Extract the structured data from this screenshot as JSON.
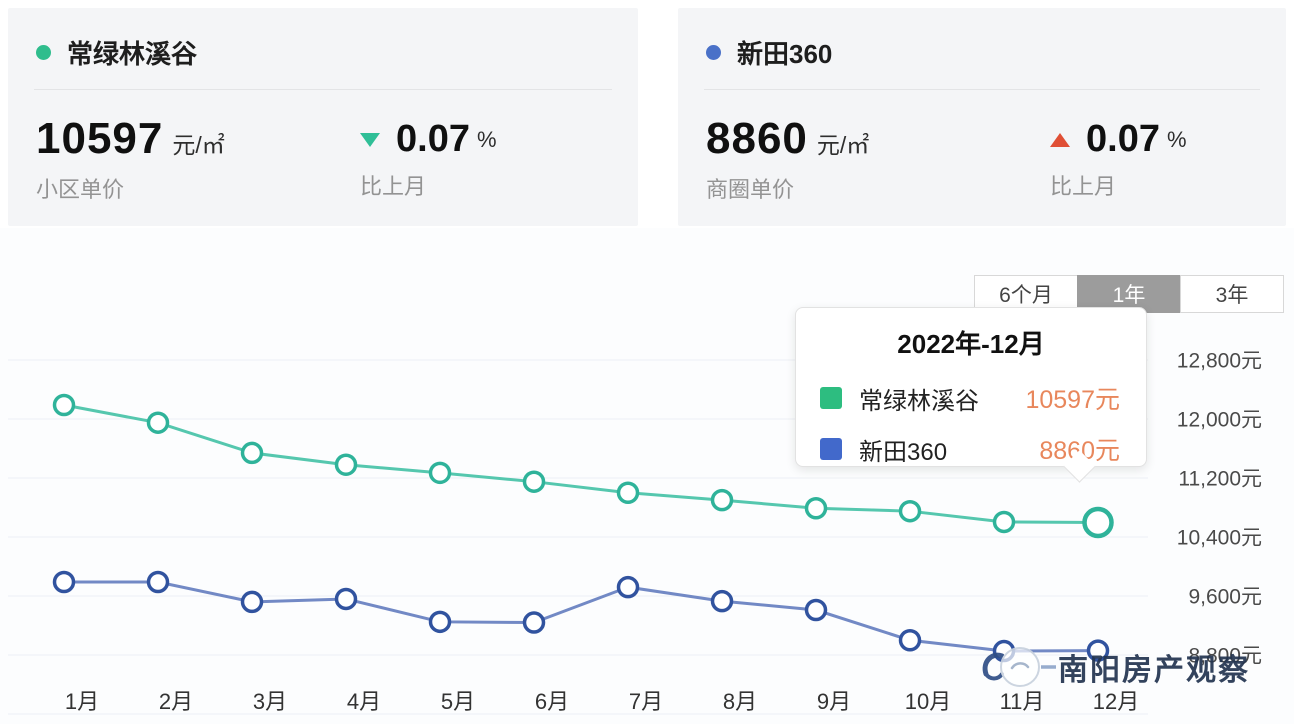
{
  "summary_cards": [
    {
      "name": "常绿林溪谷",
      "dot_color": "#2fbd8d",
      "price": "10597",
      "unit": "元/㎡",
      "price_label": "小区单价",
      "change_value": "0.07",
      "change_unit": "%",
      "change_dir": "down",
      "change_color": "#2fbf97",
      "change_label": "比上月"
    },
    {
      "name": "新田360",
      "dot_color": "#4a71c8",
      "price": "8860",
      "unit": "元/㎡",
      "price_label": "商圈单价",
      "change_value": "0.07",
      "change_unit": "%",
      "change_dir": "up",
      "change_color": "#e04f35",
      "change_label": "比上月"
    }
  ],
  "tabs": [
    {
      "label": "6个月",
      "active": false
    },
    {
      "label": "1年",
      "active": true
    },
    {
      "label": "3年",
      "active": false
    }
  ],
  "tooltip": {
    "title": "2022年-12月",
    "rows": [
      {
        "label": "常绿林溪谷",
        "value": "10597元",
        "swatch_color": "#2dbd80"
      },
      {
        "label": "新田360",
        "value": "8860元",
        "swatch_color": "#4269cb"
      }
    ],
    "value_color": "#e8875c"
  },
  "watermark_text": "南阳房产观察",
  "chart_data": {
    "type": "line",
    "title": "",
    "x": [
      "1月",
      "2月",
      "3月",
      "4月",
      "5月",
      "6月",
      "7月",
      "8月",
      "9月",
      "10月",
      "11月",
      "12月"
    ],
    "series": [
      {
        "name": "常绿林溪谷",
        "line_color": "#55c7ae",
        "marker_color": "#2fb39a",
        "values": [
          12190,
          11950,
          11540,
          11380,
          11270,
          11150,
          11000,
          10900,
          10790,
          10750,
          10604,
          10597
        ],
        "highlight_last": true
      },
      {
        "name": "新田360",
        "line_color": "#7289c5",
        "marker_color": "#31539f",
        "values": [
          9790,
          9790,
          9520,
          9560,
          9250,
          9240,
          9720,
          9530,
          9410,
          9000,
          8854,
          8860
        ],
        "highlight_last": false
      }
    ],
    "y_ticks": [
      {
        "value": 12800,
        "label": "12,800元"
      },
      {
        "value": 12000,
        "label": "12,000元"
      },
      {
        "value": 11200,
        "label": "11,200元"
      },
      {
        "value": 10400,
        "label": "10,400元"
      },
      {
        "value": 9600,
        "label": "9,600元"
      },
      {
        "value": 8800,
        "label": "8,800元"
      },
      {
        "value": 8000,
        "label": ""
      }
    ],
    "ylim": [
      8000,
      13200
    ],
    "grid": true,
    "legend_position": "tooltip",
    "x_axis_unit": "月",
    "y_axis_unit": "元"
  }
}
